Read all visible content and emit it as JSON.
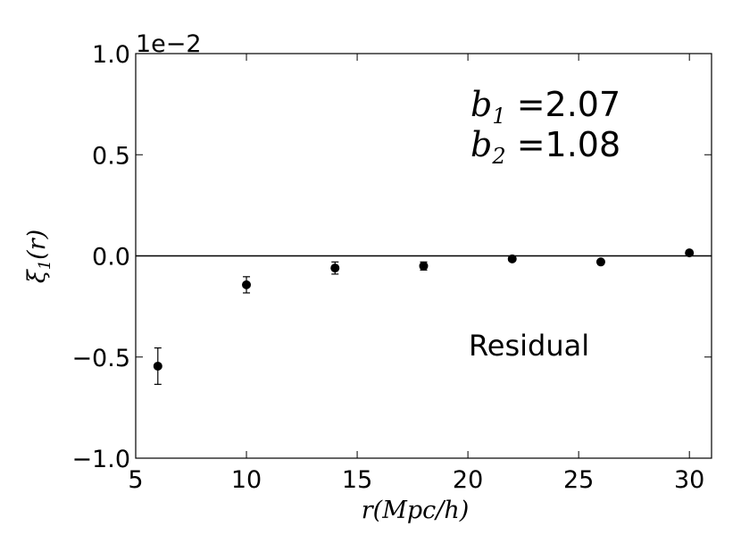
{
  "chart_data": {
    "type": "scatter",
    "x_label": {
      "base": "r",
      "rest": "(Mpc/h)"
    },
    "y_label": {
      "base": "ξ",
      "subscript": "1",
      "rest": "(r)"
    },
    "offset_text": "1e−2",
    "annotations": [
      {
        "base": "b",
        "subscript": "1",
        "text": " =2.07"
      },
      {
        "base": "b",
        "subscript": "2",
        "text": " =1.08"
      },
      {
        "text": "Residual"
      }
    ],
    "series": [
      {
        "name": "Residual",
        "color": "#000000",
        "x": [
          6,
          10,
          14,
          18,
          22,
          26,
          30
        ],
        "values": [
          -0.545,
          -0.143,
          -0.06,
          -0.05,
          -0.015,
          -0.03,
          0.015
        ],
        "errors": [
          0.09,
          0.04,
          0.03,
          0.02,
          0.01,
          0.01,
          0.01
        ]
      }
    ],
    "hline": 0,
    "xlim": [
      5,
      31
    ],
    "xticks": [
      5,
      10,
      15,
      20,
      25,
      30
    ],
    "ylim": [
      -1.0,
      1.0
    ],
    "yticks": [
      {
        "value": -1.0,
        "label": "−1.0"
      },
      {
        "value": -0.5,
        "label": "−0.5"
      },
      {
        "value": 0.0,
        "label": "0.0"
      },
      {
        "value": 0.5,
        "label": "0.5"
      },
      {
        "value": 1.0,
        "label": "1.0"
      }
    ]
  }
}
